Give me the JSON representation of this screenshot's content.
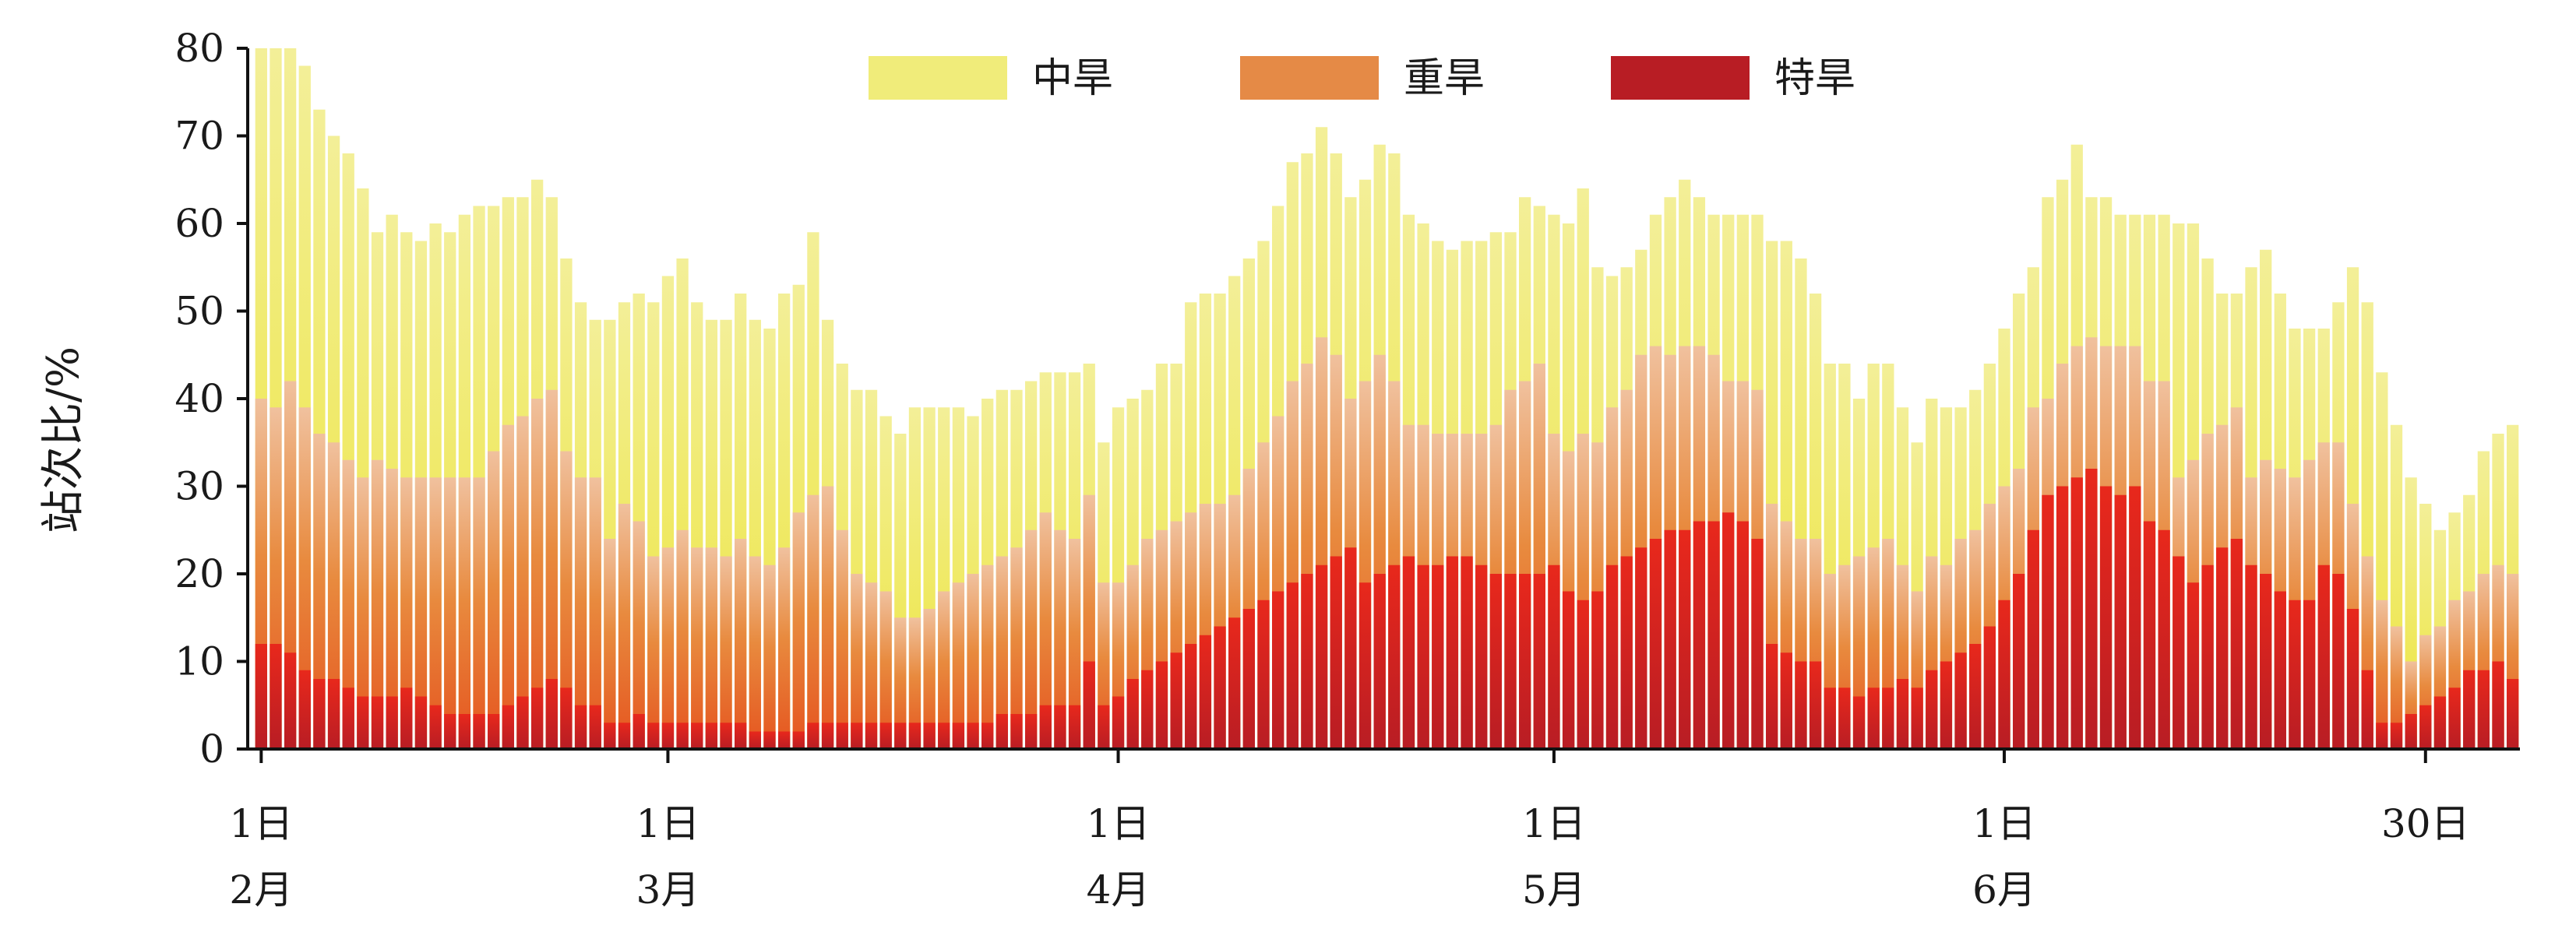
{
  "chart_data": {
    "type": "bar",
    "subtype": "overlapping-stacked",
    "xlabel": "",
    "ylabel": "站次比/%",
    "ylim": [
      0,
      80
    ],
    "yticks": [
      0,
      10,
      20,
      30,
      40,
      50,
      60,
      70,
      80
    ],
    "xtick_labels": [
      {
        "day": "1日",
        "month": "2月",
        "index": 0
      },
      {
        "day": "1日",
        "month": "3月",
        "index": 28
      },
      {
        "day": "1日",
        "month": "4月",
        "index": 59
      },
      {
        "day": "1日",
        "month": "5月",
        "index": 89
      },
      {
        "day": "1日",
        "month": "6月",
        "index": 120
      },
      {
        "day": "30日",
        "month": "",
        "index": 149
      }
    ],
    "legend_position": "top-center",
    "grid": false,
    "series": [
      {
        "name": "中旱",
        "color": "#f0ec7a",
        "values": [
          80,
          80,
          80,
          78,
          73,
          70,
          68,
          64,
          59,
          61,
          59,
          58,
          60,
          59,
          61,
          62,
          62,
          63,
          63,
          65,
          63,
          56,
          51,
          49,
          49,
          51,
          52,
          51,
          54,
          56,
          51,
          49,
          49,
          52,
          49,
          48,
          52,
          53,
          59,
          49,
          44,
          41,
          41,
          38,
          36,
          39,
          39,
          39,
          39,
          38,
          40,
          41,
          41,
          42,
          43,
          43,
          43,
          44,
          35,
          39,
          40,
          41,
          44,
          44,
          51,
          52,
          52,
          54,
          56,
          58,
          62,
          67,
          68,
          71,
          68,
          63,
          65,
          69,
          68,
          61,
          60,
          58,
          57,
          58,
          58,
          59,
          59,
          63,
          62,
          61,
          60,
          64,
          55,
          54,
          55,
          57,
          61,
          63,
          65,
          63,
          61,
          61,
          61,
          61,
          58,
          58,
          56,
          52,
          44,
          44,
          40,
          44,
          44,
          39,
          35,
          40,
          39,
          39,
          41,
          44,
          48,
          52,
          55,
          63,
          65,
          69,
          63,
          63,
          61,
          61,
          61,
          61,
          60,
          60,
          56,
          52,
          52,
          55,
          57,
          52,
          48,
          48,
          48,
          51,
          55,
          51,
          43,
          37,
          31,
          28,
          25,
          27,
          29,
          34,
          36,
          37
        ]
      },
      {
        "name": "重旱",
        "color": "#e58a46",
        "values": [
          40,
          39,
          42,
          39,
          36,
          35,
          33,
          31,
          33,
          32,
          31,
          31,
          31,
          31,
          31,
          31,
          34,
          37,
          38,
          40,
          41,
          34,
          31,
          31,
          24,
          28,
          26,
          22,
          23,
          25,
          23,
          23,
          22,
          24,
          22,
          21,
          23,
          27,
          29,
          30,
          25,
          20,
          19,
          18,
          15,
          15,
          16,
          18,
          19,
          20,
          21,
          22,
          23,
          25,
          27,
          25,
          24,
          29,
          19,
          19,
          21,
          24,
          25,
          26,
          27,
          28,
          28,
          29,
          32,
          35,
          38,
          42,
          44,
          47,
          45,
          40,
          42,
          45,
          42,
          37,
          37,
          36,
          36,
          36,
          36,
          37,
          41,
          42,
          44,
          36,
          34,
          36,
          35,
          39,
          41,
          45,
          46,
          45,
          46,
          46,
          45,
          42,
          42,
          41,
          28,
          26,
          24,
          24,
          20,
          21,
          22,
          23,
          24,
          21,
          18,
          22,
          21,
          24,
          25,
          28,
          30,
          32,
          39,
          40,
          44,
          46,
          47,
          46,
          46,
          46,
          42,
          42,
          31,
          33,
          36,
          37,
          39,
          31,
          33,
          32,
          31,
          33,
          35,
          35,
          28,
          22,
          17,
          14,
          10,
          13,
          14,
          17,
          18,
          20,
          21,
          20
        ]
      },
      {
        "name": "特旱",
        "color": "#b81d24",
        "values": [
          12,
          12,
          11,
          9,
          8,
          8,
          7,
          6,
          6,
          6,
          7,
          6,
          5,
          4,
          4,
          4,
          4,
          5,
          6,
          7,
          8,
          7,
          5,
          5,
          3,
          3,
          4,
          3,
          3,
          3,
          3,
          3,
          3,
          3,
          2,
          2,
          2,
          2,
          3,
          3,
          3,
          3,
          3,
          3,
          3,
          3,
          3,
          3,
          3,
          3,
          3,
          4,
          4,
          4,
          5,
          5,
          5,
          10,
          5,
          6,
          8,
          9,
          10,
          11,
          12,
          13,
          14,
          15,
          16,
          17,
          18,
          19,
          20,
          21,
          22,
          23,
          19,
          20,
          21,
          22,
          21,
          21,
          22,
          22,
          21,
          20,
          20,
          20,
          20,
          21,
          18,
          17,
          18,
          21,
          22,
          23,
          24,
          25,
          25,
          26,
          26,
          27,
          26,
          24,
          12,
          11,
          10,
          10,
          7,
          7,
          6,
          7,
          7,
          8,
          7,
          9,
          10,
          11,
          12,
          14,
          17,
          20,
          25,
          29,
          30,
          31,
          32,
          30,
          29,
          30,
          26,
          25,
          22,
          19,
          21,
          23,
          24,
          21,
          20,
          18,
          17,
          17,
          21,
          20,
          16,
          9,
          3,
          3,
          4,
          5,
          6,
          7,
          9,
          9,
          10,
          8
        ]
      }
    ]
  }
}
